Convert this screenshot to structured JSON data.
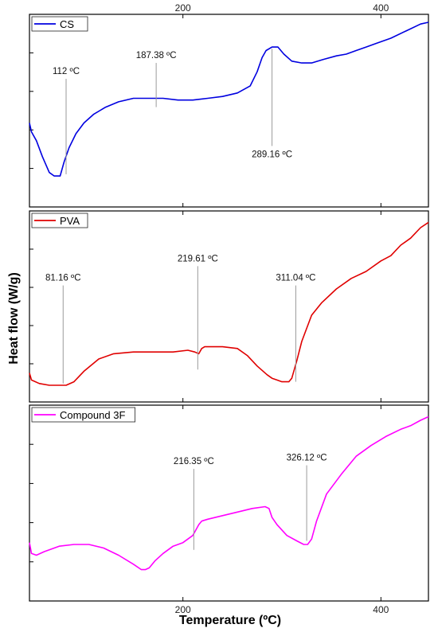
{
  "chart_data": {
    "type": "line",
    "xlabel": "Temperature (ºC)",
    "ylabel": "Heat flow (W/g)",
    "xlim": [
      45,
      448
    ],
    "x_ticks": [
      200,
      400
    ],
    "top_tick_labels": [
      "200",
      "400"
    ],
    "bottom_tick_labels": [
      "200",
      "400"
    ],
    "grid": false,
    "legend_position": "top-left",
    "panels": [
      {
        "name": "CS",
        "color": "#0000e0",
        "ylim": [
          0,
          1
        ],
        "x": [
          45,
          47,
          52,
          58,
          65,
          70,
          76,
          80,
          85,
          92,
          100,
          110,
          122,
          135,
          150,
          165,
          180,
          195,
          210,
          225,
          240,
          255,
          268,
          275,
          280,
          284,
          290,
          296,
          302,
          310,
          320,
          330,
          342,
          355,
          365,
          375,
          385,
          395,
          410,
          425,
          440,
          448
        ],
        "y": [
          0.43,
          0.38,
          0.33,
          0.24,
          0.15,
          0.13,
          0.13,
          0.21,
          0.29,
          0.37,
          0.43,
          0.48,
          0.52,
          0.55,
          0.57,
          0.57,
          0.57,
          0.56,
          0.56,
          0.57,
          0.58,
          0.6,
          0.64,
          0.72,
          0.8,
          0.84,
          0.86,
          0.86,
          0.82,
          0.78,
          0.77,
          0.77,
          0.79,
          0.81,
          0.82,
          0.84,
          0.86,
          0.88,
          0.91,
          0.95,
          0.99,
          1.0
        ],
        "annotations": [
          {
            "label": "112 ºC",
            "x": 82,
            "y_top": 0.68,
            "y_bottom": 0.14
          },
          {
            "label": "187.38 ºC",
            "x": 173,
            "y_top": 0.77,
            "y_bottom": 0.52
          },
          {
            "label": "289.16 ºC",
            "x": 290,
            "y_top": 0.85,
            "y_bottom": 0.3,
            "label_below": true
          }
        ]
      },
      {
        "name": "PVA",
        "color": "#e00000",
        "ylim": [
          0,
          1
        ],
        "x": [
          45,
          47,
          55,
          65,
          75,
          82,
          90,
          100,
          115,
          130,
          150,
          170,
          190,
          205,
          212,
          216,
          219,
          222,
          225,
          240,
          255,
          265,
          275,
          285,
          290,
          295,
          300,
          307,
          310,
          315,
          320,
          330,
          340,
          355,
          370,
          385,
          400,
          410,
          420,
          430,
          440,
          448
        ],
        "y": [
          0.12,
          0.08,
          0.06,
          0.05,
          0.05,
          0.05,
          0.07,
          0.13,
          0.2,
          0.23,
          0.24,
          0.24,
          0.24,
          0.25,
          0.24,
          0.23,
          0.26,
          0.27,
          0.27,
          0.27,
          0.26,
          0.22,
          0.16,
          0.11,
          0.09,
          0.08,
          0.07,
          0.07,
          0.09,
          0.19,
          0.3,
          0.45,
          0.52,
          0.6,
          0.66,
          0.7,
          0.76,
          0.79,
          0.85,
          0.89,
          0.95,
          0.98
        ],
        "annotations": [
          {
            "label": "81.16 ºC",
            "x": 79,
            "y_top": 0.62,
            "y_bottom": 0.06
          },
          {
            "label": "219.61 ºC",
            "x": 215,
            "y_top": 0.73,
            "y_bottom": 0.14
          },
          {
            "label": "311.04 ºC",
            "x": 314,
            "y_top": 0.62,
            "y_bottom": 0.07
          }
        ]
      },
      {
        "name": "Compound 3F",
        "color": "#ff00ff",
        "ylim": [
          0,
          1
        ],
        "x": [
          45,
          47,
          52,
          60,
          75,
          90,
          105,
          120,
          135,
          150,
          158,
          162,
          166,
          172,
          180,
          190,
          200,
          210,
          213,
          216,
          219,
          225,
          240,
          255,
          270,
          283,
          287,
          290,
          295,
          305,
          315,
          322,
          326,
          330,
          335,
          345,
          360,
          375,
          390,
          405,
          420,
          430,
          440,
          448
        ],
        "y": [
          0.28,
          0.22,
          0.21,
          0.23,
          0.26,
          0.27,
          0.27,
          0.25,
          0.21,
          0.16,
          0.13,
          0.13,
          0.14,
          0.18,
          0.22,
          0.26,
          0.28,
          0.32,
          0.35,
          0.38,
          0.4,
          0.41,
          0.43,
          0.45,
          0.47,
          0.48,
          0.47,
          0.42,
          0.38,
          0.32,
          0.29,
          0.27,
          0.27,
          0.3,
          0.4,
          0.55,
          0.66,
          0.76,
          0.82,
          0.87,
          0.91,
          0.93,
          0.96,
          0.98
        ],
        "annotations": [
          {
            "label": "216.35 ºC",
            "x": 211,
            "y_top": 0.69,
            "y_bottom": 0.24
          },
          {
            "label": "326.12 ºC",
            "x": 325,
            "y_top": 0.71,
            "y_bottom": 0.29
          }
        ]
      }
    ]
  }
}
